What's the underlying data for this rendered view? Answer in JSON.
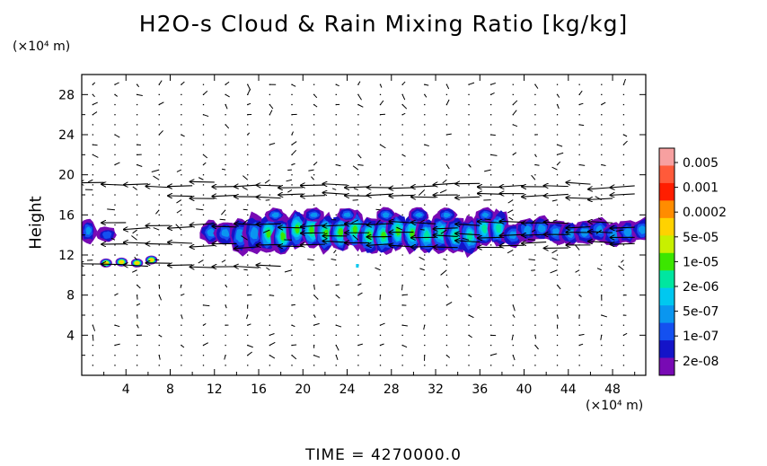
{
  "chart_data": {
    "type": "heatmap",
    "title": "H2O-s Cloud & Rain Mixing Ratio [kg/kg]",
    "xlabel": "",
    "ylabel": "Height",
    "x_unit_label": "(×10⁴ m)",
    "y_unit_label": "(×10⁴ m)",
    "xlim": [
      0,
      51
    ],
    "ylim": [
      0,
      30
    ],
    "x_ticks": [
      "4",
      "8",
      "12",
      "16",
      "20",
      "24",
      "28",
      "32",
      "36",
      "40",
      "44",
      "48"
    ],
    "y_ticks": [
      "4",
      "8",
      "12",
      "16",
      "20",
      "24",
      "28"
    ],
    "grid": "dotted vector field",
    "colorbar": {
      "labels": [
        "0.005",
        "0.001",
        "0.0002",
        "5e-05",
        "1e-05",
        "2e-06",
        "5e-07",
        "1e-07",
        "2e-08"
      ],
      "colors": [
        "#f7a0a0",
        "#ff5a3a",
        "#ff1e00",
        "#ff8c00",
        "#ffd200",
        "#c8f000",
        "#3ce600",
        "#00e6a0",
        "#00c8f0",
        "#0a96f0",
        "#1450f0",
        "#1414c8",
        "#780ab4"
      ]
    },
    "regions": [
      {
        "name": "main cloud layer",
        "x": [
          11,
          51
        ],
        "y": [
          12,
          16.5
        ],
        "peak": "5e-05"
      },
      {
        "name": "left edge cloud",
        "x": [
          0,
          3.2
        ],
        "y": [
          13.2,
          15.8
        ],
        "peak": "5e-07"
      },
      {
        "name": "low level cloud",
        "x": [
          1,
          7
        ],
        "y": [
          10.9,
          11.8
        ],
        "peak": "0.0002"
      }
    ],
    "wind_jets": [
      {
        "y": 19,
        "x": [
          1,
          50
        ],
        "direction": "westward"
      },
      {
        "y": 17.9,
        "x": [
          8,
          50
        ],
        "direction": "westward"
      },
      {
        "y": 15,
        "x": [
          2,
          50
        ],
        "direction": "westward"
      },
      {
        "y": 14,
        "x": [
          20,
          50
        ],
        "direction": "westward"
      },
      {
        "y": 13,
        "x": [
          2,
          50
        ],
        "direction": "westward"
      },
      {
        "y": 11,
        "x": [
          1,
          18
        ],
        "direction": "westward"
      }
    ]
  },
  "footer": {
    "time": "TIME = 4270000.0"
  }
}
